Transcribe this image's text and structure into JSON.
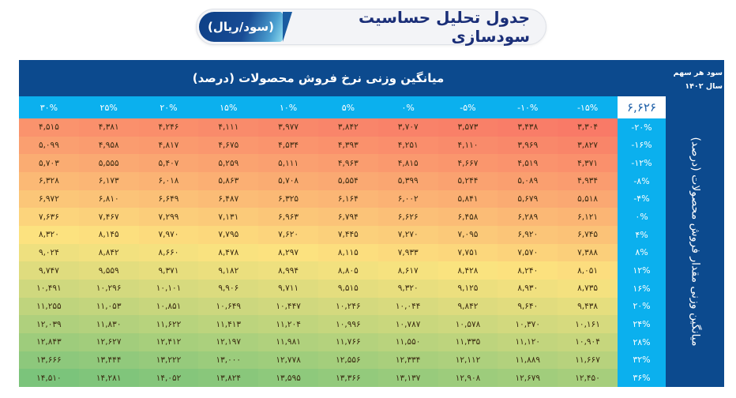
{
  "header": {
    "title": "جدول تحلیل حساسیت سودسازی",
    "unit_tag": "(سود/ریال)"
  },
  "table": {
    "column_axis_title": "میانگین وزنی نرخ فروش محصولات (درصد)",
    "row_axis_title": "میانگین وزنی مقدار فروش محصولات (درصد)",
    "eps_label_line1": "سود هر سهم",
    "eps_label_line2": "سال ۱۴۰۲",
    "base_value": "۶,۶۲۶",
    "colors": {
      "header_dark": "#0c4a8e",
      "header_light": "#0bb0ee",
      "low": "#f97a67",
      "mid": "#fce37f",
      "high": "#7bc47b"
    },
    "columns": [
      "۳۰%",
      "۲۵%",
      "۲۰%",
      "۱۵%",
      "۱۰%",
      "۵%",
      "۰%",
      "-۵%",
      "-۱۰%",
      "-۱۵%"
    ],
    "rows": [
      {
        "label": "-۲۰%",
        "values": [
          "۴,۵۱۵",
          "۴,۳۸۱",
          "۴,۲۴۶",
          "۴,۱۱۱",
          "۳,۹۷۷",
          "۳,۸۴۲",
          "۳,۷۰۷",
          "۳,۵۷۳",
          "۳,۴۳۸",
          "۳,۳۰۴"
        ]
      },
      {
        "label": "-۱۶%",
        "values": [
          "۵,۰۹۹",
          "۴,۹۵۸",
          "۴,۸۱۷",
          "۴,۶۷۵",
          "۴,۵۳۴",
          "۴,۳۹۳",
          "۴,۲۵۱",
          "۴,۱۱۰",
          "۳,۹۶۹",
          "۳,۸۲۷"
        ]
      },
      {
        "label": "-۱۲%",
        "values": [
          "۵,۷۰۳",
          "۵,۵۵۵",
          "۵,۴۰۷",
          "۵,۲۵۹",
          "۵,۱۱۱",
          "۴,۹۶۳",
          "۴,۸۱۵",
          "۴,۶۶۷",
          "۴,۵۱۹",
          "۴,۳۷۱"
        ]
      },
      {
        "label": "-۸%",
        "values": [
          "۶,۳۲۸",
          "۶,۱۷۳",
          "۶,۰۱۸",
          "۵,۸۶۳",
          "۵,۷۰۸",
          "۵,۵۵۴",
          "۵,۳۹۹",
          "۵,۲۴۴",
          "۵,۰۸۹",
          "۴,۹۳۴"
        ]
      },
      {
        "label": "-۴%",
        "values": [
          "۶,۹۷۲",
          "۶,۸۱۰",
          "۶,۶۴۹",
          "۶,۴۸۷",
          "۶,۳۲۵",
          "۶,۱۶۴",
          "۶,۰۰۲",
          "۵,۸۴۱",
          "۵,۶۷۹",
          "۵,۵۱۸"
        ]
      },
      {
        "label": "۰%",
        "values": [
          "۷,۶۳۶",
          "۷,۴۶۷",
          "۷,۲۹۹",
          "۷,۱۳۱",
          "۶,۹۶۳",
          "۶,۷۹۴",
          "۶,۶۲۶",
          "۶,۴۵۸",
          "۶,۲۸۹",
          "۶,۱۲۱"
        ]
      },
      {
        "label": "۴%",
        "values": [
          "۸,۳۲۰",
          "۸,۱۴۵",
          "۷,۹۷۰",
          "۷,۷۹۵",
          "۷,۶۲۰",
          "۷,۴۴۵",
          "۷,۲۷۰",
          "۷,۰۹۵",
          "۶,۹۲۰",
          "۶,۷۴۵"
        ]
      },
      {
        "label": "۸%",
        "values": [
          "۹,۰۲۴",
          "۸,۸۴۲",
          "۸,۶۶۰",
          "۸,۴۷۸",
          "۸,۲۹۷",
          "۸,۱۱۵",
          "۷,۹۳۳",
          "۷,۷۵۱",
          "۷,۵۷۰",
          "۷,۳۸۸"
        ]
      },
      {
        "label": "۱۲%",
        "values": [
          "۹,۷۴۷",
          "۹,۵۵۹",
          "۹,۳۷۱",
          "۹,۱۸۲",
          "۸,۹۹۴",
          "۸,۸۰۵",
          "۸,۶۱۷",
          "۸,۴۲۸",
          "۸,۲۴۰",
          "۸,۰۵۱"
        ]
      },
      {
        "label": "۱۶%",
        "values": [
          "۱۰,۴۹۱",
          "۱۰,۲۹۶",
          "۱۰,۱۰۱",
          "۹,۹۰۶",
          "۹,۷۱۱",
          "۹,۵۱۵",
          "۹,۳۲۰",
          "۹,۱۲۵",
          "۸,۹۳۰",
          "۸,۷۳۵"
        ]
      },
      {
        "label": "۲۰%",
        "values": [
          "۱۱,۲۵۵",
          "۱۱,۰۵۳",
          "۱۰,۸۵۱",
          "۱۰,۶۴۹",
          "۱۰,۴۴۷",
          "۱۰,۲۴۶",
          "۱۰,۰۴۴",
          "۹,۸۴۲",
          "۹,۶۴۰",
          "۹,۴۳۸"
        ]
      },
      {
        "label": "۲۴%",
        "values": [
          "۱۲,۰۳۹",
          "۱۱,۸۳۰",
          "۱۱,۶۲۲",
          "۱۱,۴۱۳",
          "۱۱,۲۰۴",
          "۱۰,۹۹۶",
          "۱۰,۷۸۷",
          "۱۰,۵۷۸",
          "۱۰,۳۷۰",
          "۱۰,۱۶۱"
        ]
      },
      {
        "label": "۲۸%",
        "values": [
          "۱۲,۸۴۳",
          "۱۲,۶۲۷",
          "۱۲,۴۱۲",
          "۱۲,۱۹۷",
          "۱۱,۹۸۱",
          "۱۱,۷۶۶",
          "۱۱,۵۵۰",
          "۱۱,۳۳۵",
          "۱۱,۱۲۰",
          "۱۰,۹۰۴"
        ]
      },
      {
        "label": "۳۲%",
        "values": [
          "۱۳,۶۶۶",
          "۱۳,۴۴۴",
          "۱۳,۲۲۲",
          "۱۳,۰۰۰",
          "۱۲,۷۷۸",
          "۱۲,۵۵۶",
          "۱۲,۳۳۴",
          "۱۲,۱۱۲",
          "۱۱,۸۸۹",
          "۱۱,۶۶۷"
        ]
      },
      {
        "label": "۳۶%",
        "values": [
          "۱۴,۵۱۰",
          "۱۴,۲۸۱",
          "۱۴,۰۵۲",
          "۱۳,۸۲۴",
          "۱۳,۵۹۵",
          "۱۳,۳۶۶",
          "۱۳,۱۳۷",
          "۱۲,۹۰۸",
          "۱۲,۶۷۹",
          "۱۲,۴۵۰"
        ]
      }
    ]
  }
}
